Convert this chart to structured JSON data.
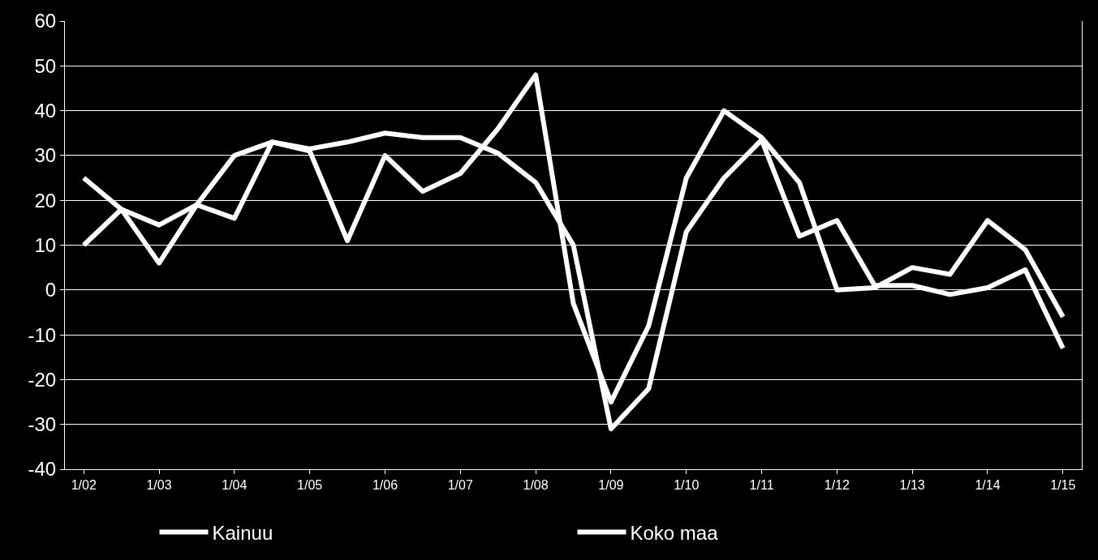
{
  "chart_data": {
    "type": "line",
    "categories": [
      "1/02",
      null,
      "1/03",
      null,
      "1/04",
      null,
      "1/05",
      null,
      "1/06",
      null,
      "1/07",
      null,
      "1/08",
      null,
      "1/09",
      null,
      "1/10",
      null,
      "1/11",
      null,
      "1/12",
      null,
      "1/13",
      null,
      "1/14",
      null,
      "1/15"
    ],
    "series": [
      {
        "name": "Kainuu",
        "color": "#ffffff",
        "values": [
          10,
          18,
          6,
          19,
          16,
          33,
          31,
          11,
          30,
          22,
          26,
          36,
          48,
          -3,
          -25,
          -8,
          25,
          40,
          34,
          24,
          0,
          0.5,
          5,
          3.5,
          15.5,
          9,
          -6
        ]
      },
      {
        "name": "Koko maa",
        "color": "#ffffff",
        "values": [
          25,
          18,
          14.5,
          19,
          30,
          33,
          31.5,
          33,
          35,
          34,
          34,
          30.5,
          24,
          10,
          -31,
          -22,
          13,
          25,
          33.5,
          12,
          15.5,
          1,
          1,
          -1,
          0.5,
          4.5,
          -13
        ]
      }
    ],
    "ylim": [
      -40,
      60
    ],
    "yticks": [
      -40,
      -30,
      -20,
      -10,
      0,
      10,
      20,
      30,
      40,
      50,
      60
    ],
    "grid": "y",
    "legend": "bottom",
    "marker": "none",
    "line_style": "solid"
  }
}
